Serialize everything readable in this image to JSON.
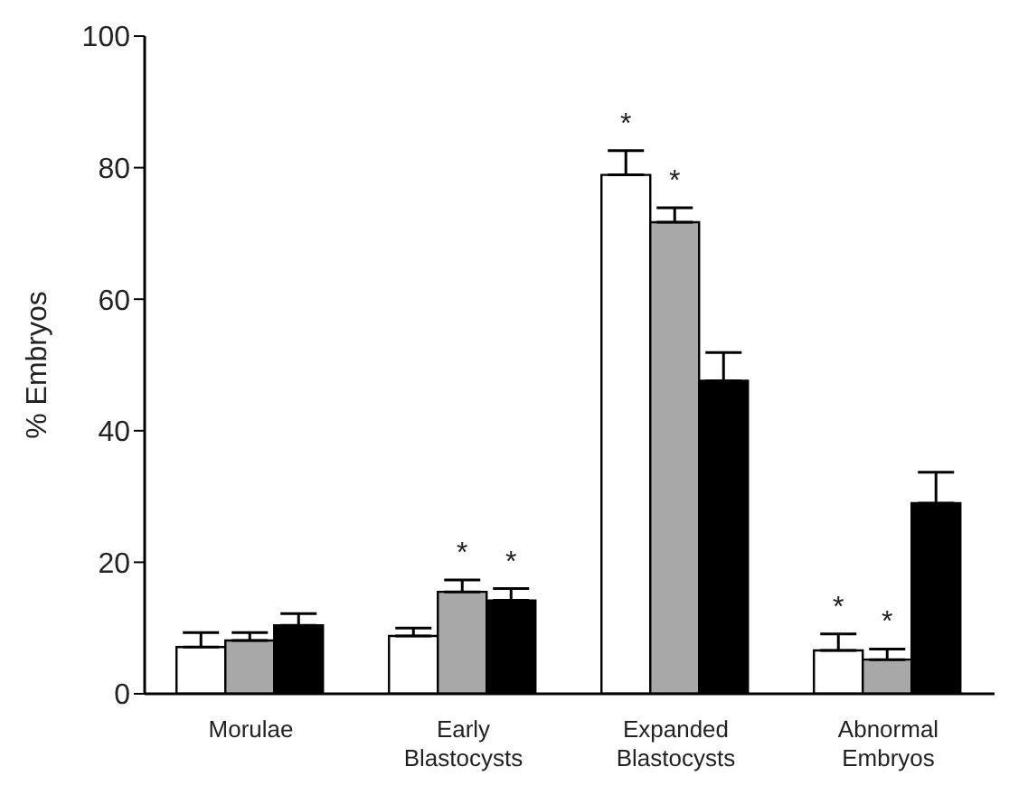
{
  "chart_data": {
    "type": "bar",
    "ylabel": "% Embryos",
    "categories": [
      "Morulae",
      "Early Blastocysts",
      "Expanded Blastocysts",
      "Abnormal Embryos"
    ],
    "series": [
      {
        "color": "#ffffff",
        "values": [
          7.1,
          8.8,
          78.9,
          6.6
        ],
        "errors": [
          [
            7.1,
            9.3
          ],
          [
            8.8,
            10.0
          ],
          [
            78.9,
            82.6
          ],
          [
            6.6,
            9.1
          ]
        ],
        "value_labels": [
          null,
          null,
          "*",
          "*"
        ]
      },
      {
        "color": "#a8a8a8",
        "values": [
          8.1,
          15.5,
          71.7,
          5.2
        ],
        "errors": [
          [
            8.1,
            9.3
          ],
          [
            15.5,
            17.3
          ],
          [
            71.7,
            73.9
          ],
          [
            5.2,
            6.8
          ]
        ],
        "value_labels": [
          null,
          "*",
          "*",
          "*"
        ]
      },
      {
        "color": "#000000",
        "values": [
          10.4,
          14.2,
          47.6,
          29.0
        ],
        "errors": [
          [
            10.4,
            12.2
          ],
          [
            14.2,
            16.0
          ],
          [
            47.6,
            51.9
          ],
          [
            29.0,
            33.7
          ]
        ],
        "value_labels": [
          null,
          "*",
          null,
          null
        ]
      }
    ],
    "ylim": [
      0,
      100
    ],
    "yticks": [
      0,
      20,
      40,
      60,
      80,
      100
    ],
    "grid": false,
    "legend": false
  }
}
